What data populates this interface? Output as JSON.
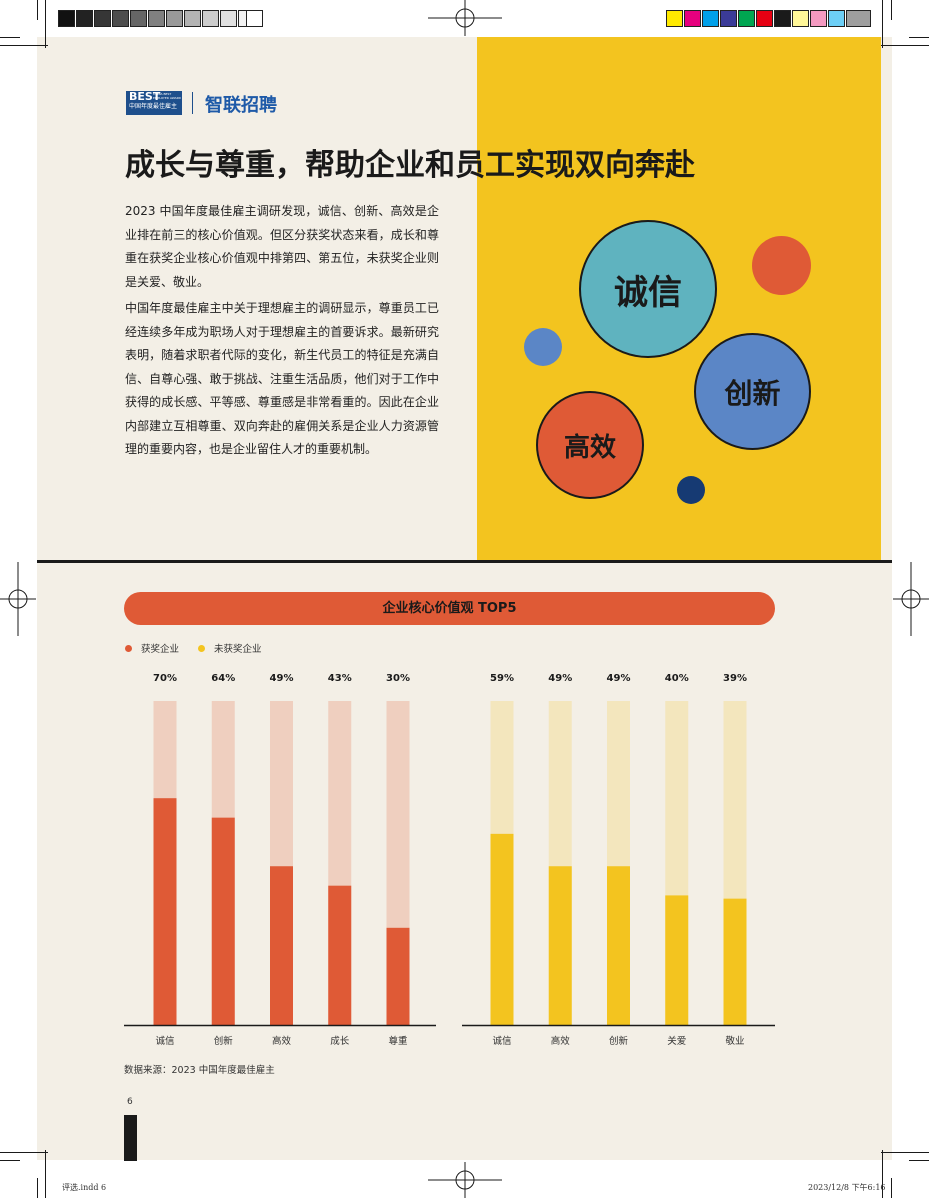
{
  "header": {
    "logo_best": "BEST",
    "logo_small": "CHINA BEST EMPLOYER AWARD",
    "logo_cn": "中国年度最佳雇主",
    "logo_brand": "智联招聘"
  },
  "title": "成长与尊重，帮助企业和员工实现双向奔赴",
  "paragraphs": [
    "2023 中国年度最佳雇主调研发现，诚信、创新、高效是企业排在前三的核心价值观。但区分获奖状态来看，成长和尊重在获奖企业核心价值观中排第四、第五位，未获奖企业则是关爱、敬业。",
    "中国年度最佳雇主中关于理想雇主的调研显示，尊重员工已经连续多年成为职场人对于理想雇主的首要诉求。最新研究表明，随着求职者代际的变化，新生代员工的特征是充满自信、自尊心强、敢于挑战、注重生活品质，他们对于工作中获得的成长感、平等感、尊重感是非常看重的。因此在企业内部建立互相尊重、双向奔赴的雇佣关系是企业人力资源管理的重要内容，也是企业留住人才的重要机制。"
  ],
  "bubbles": {
    "chengxin": "诚信",
    "chuangxin": "创新",
    "gaoxiao": "高效"
  },
  "colors": {
    "red": "#df5a36",
    "red_light": "#efcfbf",
    "yellow": "#f3c41f",
    "yellow_light": "#f3e6bd",
    "teal": "#5fb3bf",
    "blue": "#5b86c6",
    "navy": "#163a73"
  },
  "chart_data": [
    {
      "type": "bar",
      "title": "企业核心价值观 TOP5",
      "series": [
        {
          "name": "获奖企业",
          "values": [
            70,
            64,
            49,
            43,
            30
          ]
        }
      ],
      "categories": [
        "诚信",
        "创新",
        "高效",
        "成长",
        "尊重"
      ],
      "data_labels": [
        "70%",
        "64%",
        "49%",
        "43%",
        "30%"
      ],
      "ylim": [
        0,
        100
      ],
      "grid": false,
      "legend": "top-left"
    },
    {
      "type": "bar",
      "series": [
        {
          "name": "未获奖企业",
          "values": [
            59,
            49,
            49,
            40,
            39
          ]
        }
      ],
      "categories": [
        "诚信",
        "高效",
        "创新",
        "关爱",
        "敬业"
      ],
      "data_labels": [
        "59%",
        "49%",
        "49%",
        "40%",
        "39%"
      ],
      "ylim": [
        0,
        100
      ],
      "grid": false,
      "legend": "top-left"
    }
  ],
  "legend": {
    "awarded": "获奖企业",
    "not_awarded": "未获奖企业"
  },
  "source": "数据来源：2023 中国年度最佳雇主",
  "page_number": "6",
  "slug_left": "评选.indd 6",
  "slug_right": "2023/12/8  下午6:16"
}
